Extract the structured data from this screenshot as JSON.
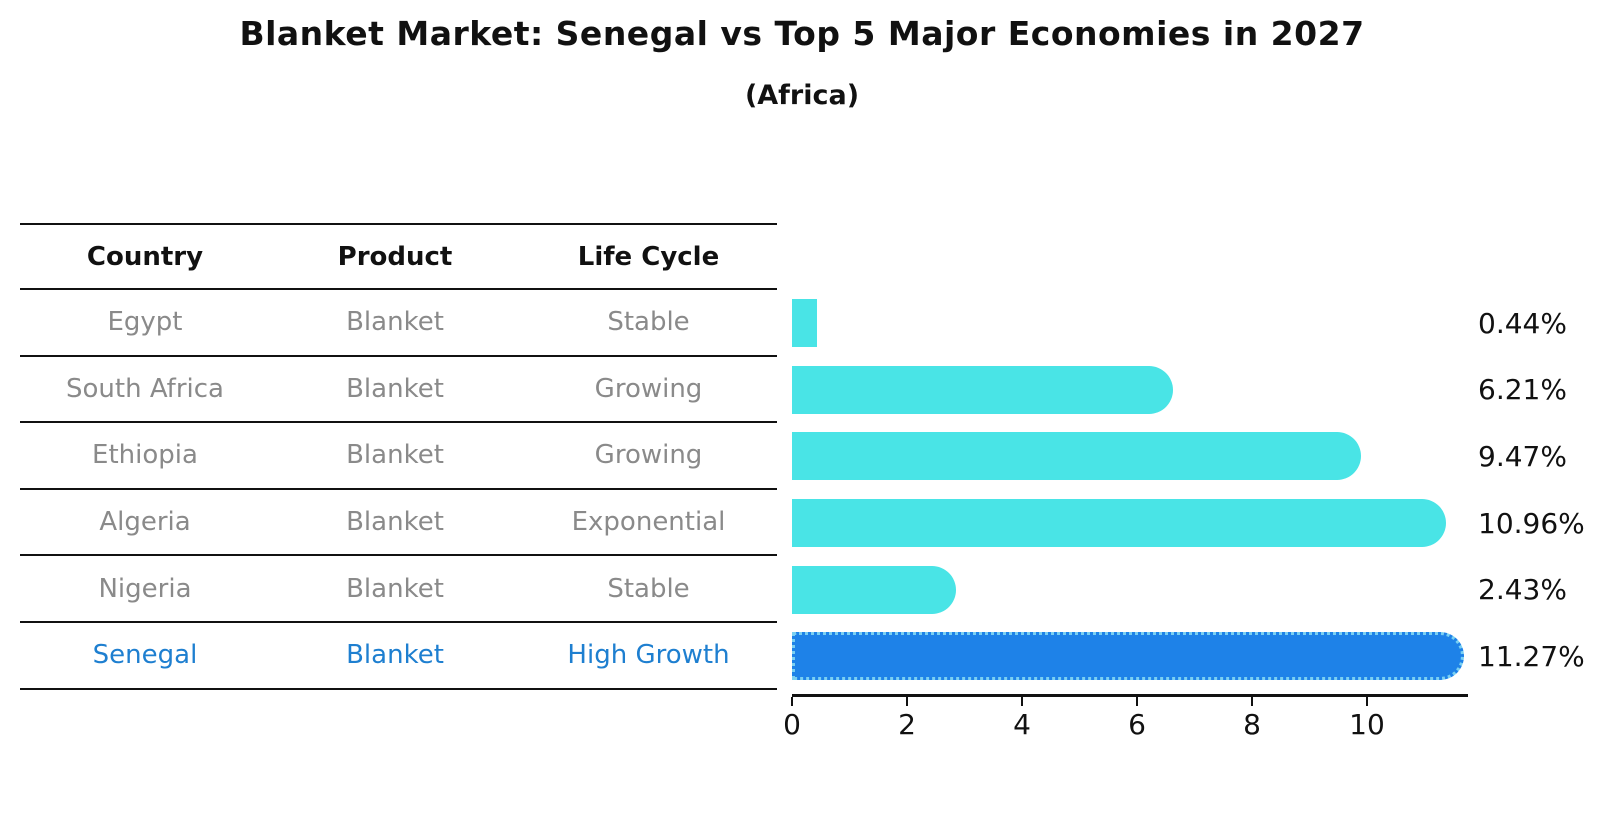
{
  "chart_data": {
    "type": "bar",
    "orientation": "horizontal",
    "title": "Blanket Market: Senegal vs Top 5 Major Economies in 2027",
    "subtitle": "(Africa)",
    "categories": [
      "Egypt",
      "South Africa",
      "Ethiopia",
      "Algeria",
      "Nigeria",
      "Senegal"
    ],
    "values": [
      0.44,
      6.21,
      9.47,
      10.96,
      2.43,
      11.27
    ],
    "value_labels": [
      "0.44%",
      "6.21%",
      "9.47%",
      "10.96%",
      "2.43%",
      "11.27%"
    ],
    "xticks": [
      0,
      2,
      4,
      6,
      8,
      10
    ],
    "xlim": [
      0,
      11.76
    ],
    "grid": false,
    "legend": null,
    "bar_color": "#49E4E6",
    "highlight_color": "#1E82E8",
    "highlight_border_color": "#7AD0F2",
    "highlight_index": 5,
    "axis_color": "#111111",
    "muted_text_color": "#8A8A8A",
    "highlight_text_color": "#1E7FD0"
  },
  "table": {
    "headers": [
      "Country",
      "Product",
      "Life Cycle"
    ],
    "rows": [
      {
        "country": "Egypt",
        "product": "Blanket",
        "life_cycle": "Stable"
      },
      {
        "country": "South Africa",
        "product": "Blanket",
        "life_cycle": "Growing"
      },
      {
        "country": "Ethiopia",
        "product": "Blanket",
        "life_cycle": "Growing"
      },
      {
        "country": "Algeria",
        "product": "Blanket",
        "life_cycle": "Exponential"
      },
      {
        "country": "Nigeria",
        "product": "Blanket",
        "life_cycle": "Stable"
      },
      {
        "country": "Senegal",
        "product": "Blanket",
        "life_cycle": "High Growth"
      }
    ],
    "highlight_row": 5
  }
}
